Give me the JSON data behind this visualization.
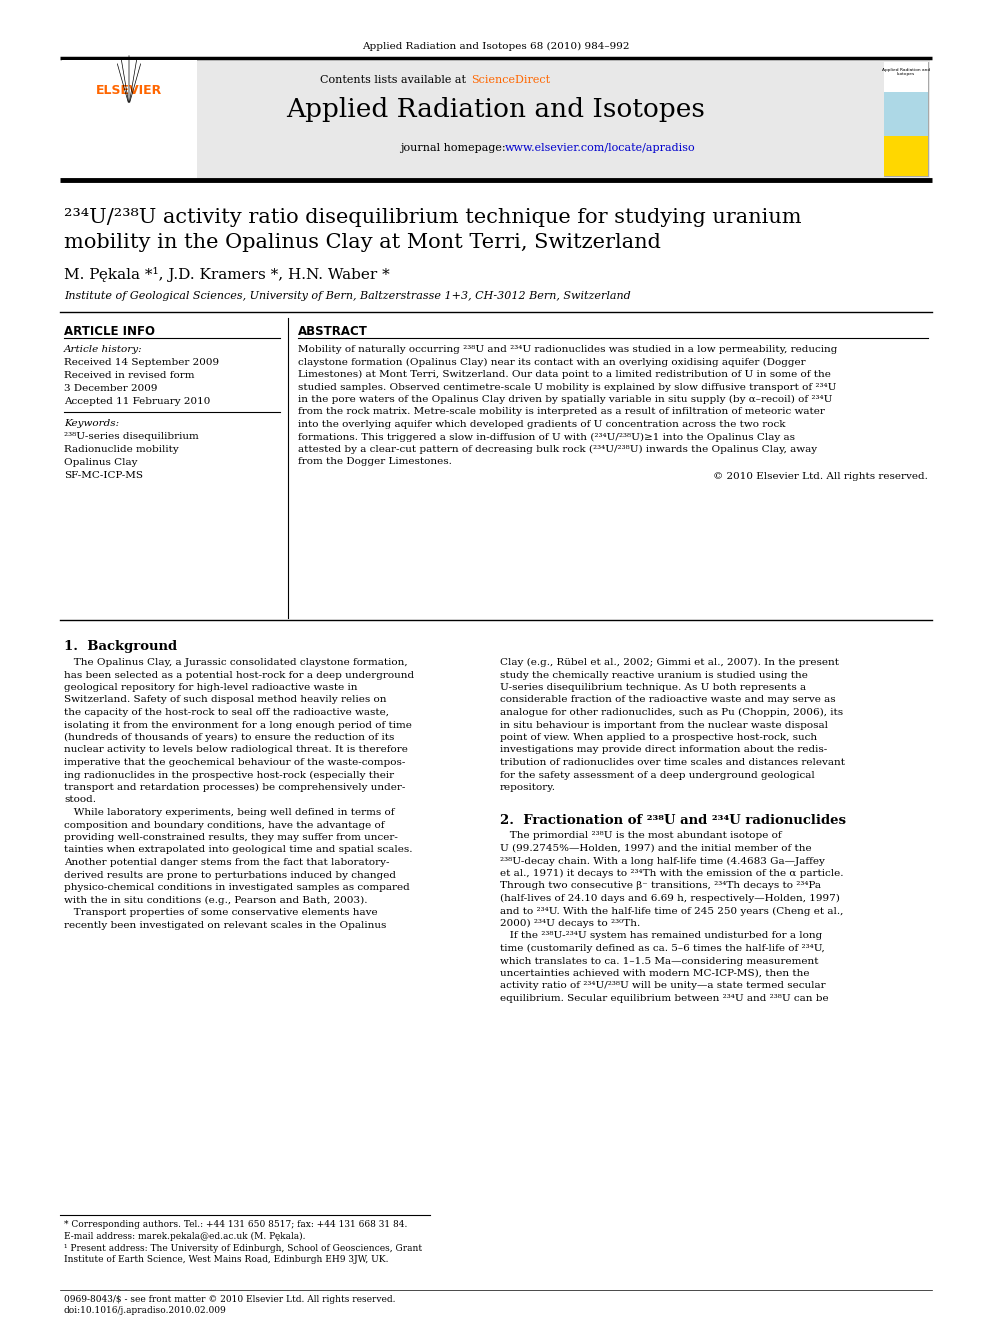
{
  "journal_ref": "Applied Radiation and Isotopes 68 (2010) 984–992",
  "contents_line": "Contents lists available at ScienceDirect",
  "journal_title": "Applied Radiation and Isotopes",
  "journal_url": "journal homepage: www.elsevier.com/locate/apradiso",
  "paper_title_line1": "²³⁴U/²³⁸U activity ratio disequilibrium technique for studying uranium",
  "paper_title_line2": "mobility in the Opalinus Clay at Mont Terri, Switzerland",
  "authors": "M. Pękala *¹, J.D. Kramers *, H.N. Waber *",
  "affiliation": "Institute of Geological Sciences, University of Bern, Baltzerstrasse 1+3, CH-3012 Bern, Switzerland",
  "article_info_header": "ARTICLE INFO",
  "article_history_label": "Article history:",
  "received1": "Received 14 September 2009",
  "received2": "Received in revised form",
  "received3": "3 December 2009",
  "accepted": "Accepted 11 February 2010",
  "keywords_label": "Keywords:",
  "kw1": "²³⁸U-series disequilibrium",
  "kw2": "Radionuclide mobility",
  "kw3": "Opalinus Clay",
  "kw4": "SF-MC-ICP-MS",
  "abstract_header": "ABSTRACT",
  "abstract_text": "Mobility of naturally occurring ²³⁸U and ²³⁴U radionuclides was studied in a low permeability, reducing\nclaystone formation (Opalinus Clay) near its contact with an overlying oxidising aquifer (Dogger\nLimestones) at Mont Terri, Switzerland. Our data point to a limited redistribution of U in some of the\nstudied samples. Observed centimetre-scale U mobility is explained by slow diffusive transport of ²³⁴U\nin the pore waters of the Opalinus Clay driven by spatially variable in situ supply (by α–recoil) of ²³⁴U\nfrom the rock matrix. Metre-scale mobility is interpreted as a result of infiltration of meteoric water\ninto the overlying aquifer which developed gradients of U concentration across the two rock\nformations. This triggered a slow in-diffusion of U with (²³⁴U/²³⁸U)≥1 into the Opalinus Clay as\nattested by a clear-cut pattern of decreasing bulk rock (²³⁴U/²³⁸U) inwards the Opalinus Clay, away\nfrom the Dogger Limestones.",
  "copyright": "© 2010 Elsevier Ltd. All rights reserved.",
  "section1_header": "1.  Background",
  "section1_col1": "   The Opalinus Clay, a Jurassic consolidated claystone formation,\nhas been selected as a potential host-rock for a deep underground\ngeological repository for high-level radioactive waste in\nSwitzerland. Safety of such disposal method heavily relies on\nthe capacity of the host-rock to seal off the radioactive waste,\nisolating it from the environment for a long enough period of time\n(hundreds of thousands of years) to ensure the reduction of its\nnuclear activity to levels below radiological threat. It is therefore\nimperative that the geochemical behaviour of the waste-compos-\ning radionuclides in the prospective host-rock (especially their\ntransport and retardation processes) be comprehensively under-\nstood.\n   While laboratory experiments, being well defined in terms of\ncomposition and boundary conditions, have the advantage of\nproviding well-constrained results, they may suffer from uncer-\ntainties when extrapolated into geological time and spatial scales.\nAnother potential danger stems from the fact that laboratory-\nderived results are prone to perturbations induced by changed\nphysico-chemical conditions in investigated samples as compared\nwith the in situ conditions (e.g., Pearson and Bath, 2003).\n   Transport properties of some conservative elements have\nrecently been investigated on relevant scales in the Opalinus",
  "section1_col2": "Clay (e.g., Rübel et al., 2002; Gimmi et al., 2007). In the present\nstudy the chemically reactive uranium is studied using the\nU-series disequilibrium technique. As U both represents a\nconsiderable fraction of the radioactive waste and may serve as\nanalogue for other radionuclides, such as Pu (Choppin, 2006), its\nin situ behaviour is important from the nuclear waste disposal\npoint of view. When applied to a prospective host-rock, such\ninvestigations may provide direct information about the redis-\ntribution of radionuclides over time scales and distances relevant\nfor the safety assessment of a deep underground geological\nrepository.",
  "section2_header": "2.  Fractionation of ²³⁸U and ²³⁴U radionuclides",
  "section2_col1": "   The primordial ²³⁸U is the most abundant isotope of\nU (99.2745%—Holden, 1997) and the initial member of the\n²³⁸U-decay chain. With a long half-life time (4.4683 Ga—Jaffey\net al., 1971) it decays to ²³⁴Th with the emission of the α particle.\nThrough two consecutive β⁻ transitions, ²³⁴Th decays to ²³⁴Pa\n(half-lives of 24.10 days and 6.69 h, respectively—Holden, 1997)\nand to ²³⁴U. With the half-life time of 245 250 years (Cheng et al.,\n2000) ²³⁴U decays to ²³⁰Th.\n   If the ²³⁸U-²³⁴U system has remained undisturbed for a long\ntime (customarily defined as ca. 5–6 times the half-life of ²³⁴U,\nwhich translates to ca. 1–1.5 Ma—considering measurement\nuncertainties achieved with modern MC-ICP-MS), then the\nactivity ratio of ²³⁴U/²³⁸U will be unity—a state termed secular\nequilibrium. Secular equilibrium between ²³⁴U and ²³⁸U can be",
  "footnote_star": "* Corresponding authors. Tel.: +44 131 650 8517; fax: +44 131 668 31 84.",
  "footnote_email": "E-mail address: marek.pekala@ed.ac.uk (M. Pękala).",
  "footnote_1a": "¹ Present address: The University of Edinburgh, School of Geosciences, Grant",
  "footnote_1b": "Institute of Earth Science, West Mains Road, Edinburgh EH9 3JW, UK.",
  "footer_issn": "0969-8043/$ - see front matter © 2010 Elsevier Ltd. All rights reserved.",
  "footer_doi": "doi:10.1016/j.apradiso.2010.02.009",
  "bg_header_color": "#e8e8e8",
  "sciencedirect_color": "#FF6600",
  "url_color": "#0000CC"
}
